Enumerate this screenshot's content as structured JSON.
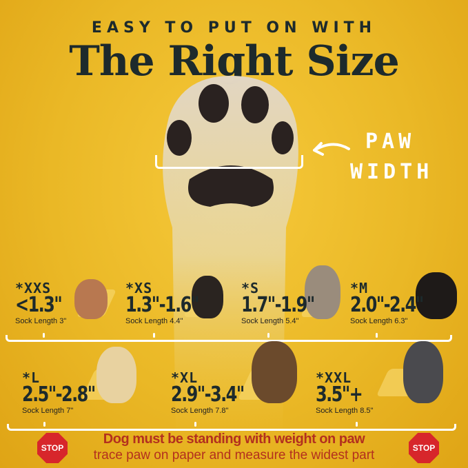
{
  "header": {
    "subtitle": "EASY TO PUT ON WITH",
    "title": "The Right Size"
  },
  "measure": {
    "line1": "PAW",
    "line2": "WIDTH",
    "icon": "curved-arrow-left-icon"
  },
  "sizes": [
    {
      "label": "*XXS",
      "range": "<1.3\"",
      "sock": "Sock Length 3\""
    },
    {
      "label": "*XS",
      "range": "1.3\"-1.6\"",
      "sock": "Sock Length 4.4\""
    },
    {
      "label": "*S",
      "range": "1.7\"-1.9\"",
      "sock": "Sock Length 5.4\""
    },
    {
      "label": "*M",
      "range": "2.0\"-2.4\"",
      "sock": "Sock Length 6.3\""
    },
    {
      "label": "*L",
      "range": "2.5\"-2.8\"",
      "sock": "Sock Length 7\""
    },
    {
      "label": "*XL",
      "range": "2.9\"-3.4\"",
      "sock": "Sock Length 7.8\""
    },
    {
      "label": "*XXL",
      "range": "3.5\"+",
      "sock": "Sock Length 8.5\""
    }
  ],
  "warning": {
    "line1": "Dog must be standing with weight on paw",
    "line2": "trace paw on paper and measure the widest part",
    "stop": "STOP"
  },
  "colors": {
    "background": "#eab826",
    "text": "#1d2a2c",
    "warning": "#b3301e",
    "stop": "#d7262b"
  }
}
